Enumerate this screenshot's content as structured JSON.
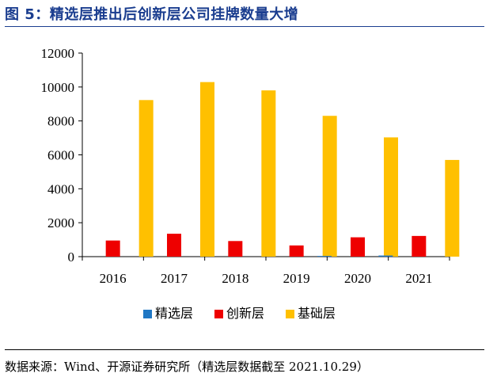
{
  "figure": {
    "title": "图 5：精选层推出后创新层公司挂牌数量大增",
    "source": "数据来源：Wind、开源证券研究所（精选层数据截至 2021.10.29）"
  },
  "chart_data": {
    "type": "bar",
    "categories": [
      "2016",
      "2017",
      "2018",
      "2019",
      "2020",
      "2021"
    ],
    "series": [
      {
        "name": "精选层",
        "color": "#1f77c4",
        "values": [
          0,
          0,
          0,
          0,
          41,
          66
        ]
      },
      {
        "name": "创新层",
        "color": "#ee0000",
        "values": [
          950,
          1350,
          920,
          660,
          1140,
          1220
        ]
      },
      {
        "name": "基础层",
        "color": "#ffc000",
        "values": [
          9230,
          10290,
          9800,
          8300,
          7030,
          5700
        ]
      }
    ],
    "ylim": [
      0,
      12000
    ],
    "yticks": [
      0,
      2000,
      4000,
      6000,
      8000,
      10000,
      12000
    ],
    "grid": false,
    "legend": "bottom"
  }
}
